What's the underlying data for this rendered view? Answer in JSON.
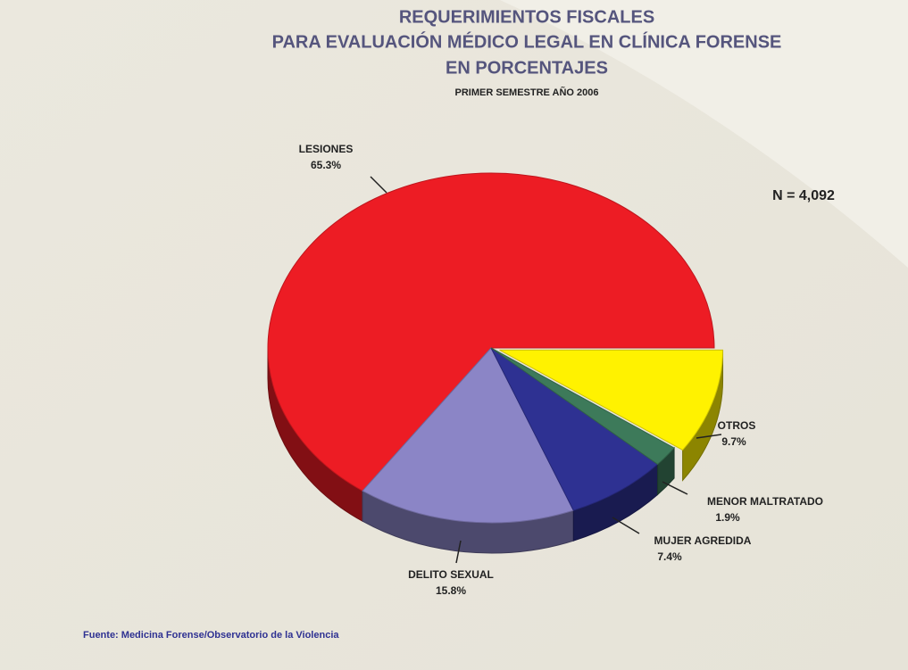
{
  "chart_data": {
    "type": "pie",
    "title_lines": [
      "REQUERIMIENTOS FISCALES",
      "PARA EVALUACIÓN MÉDICO LEGAL EN CLÍNICA FORENSE",
      "EN PORCENTAJES"
    ],
    "subtitle": "PRIMER SEMESTRE AÑO 2006",
    "annotation": "N = 4,092",
    "source": "Fuente: Medicina Forense/Observatorio de la Violencia",
    "categories": [
      "LESIONES",
      "DELITO SEXUAL",
      "MUJER AGREDIDA",
      "MENOR MALTRATADO",
      "OTROS"
    ],
    "values": [
      65.3,
      15.8,
      7.4,
      1.9,
      9.7
    ],
    "value_labels": [
      "65.3%",
      "15.8%",
      "7.4%",
      "1.9%",
      "9.7%"
    ],
    "colors": [
      "#ed1c24",
      "#8b85c6",
      "#2e3192",
      "#3d7a5a",
      "#fff200"
    ],
    "exploded": [
      false,
      false,
      false,
      false,
      true
    ]
  }
}
